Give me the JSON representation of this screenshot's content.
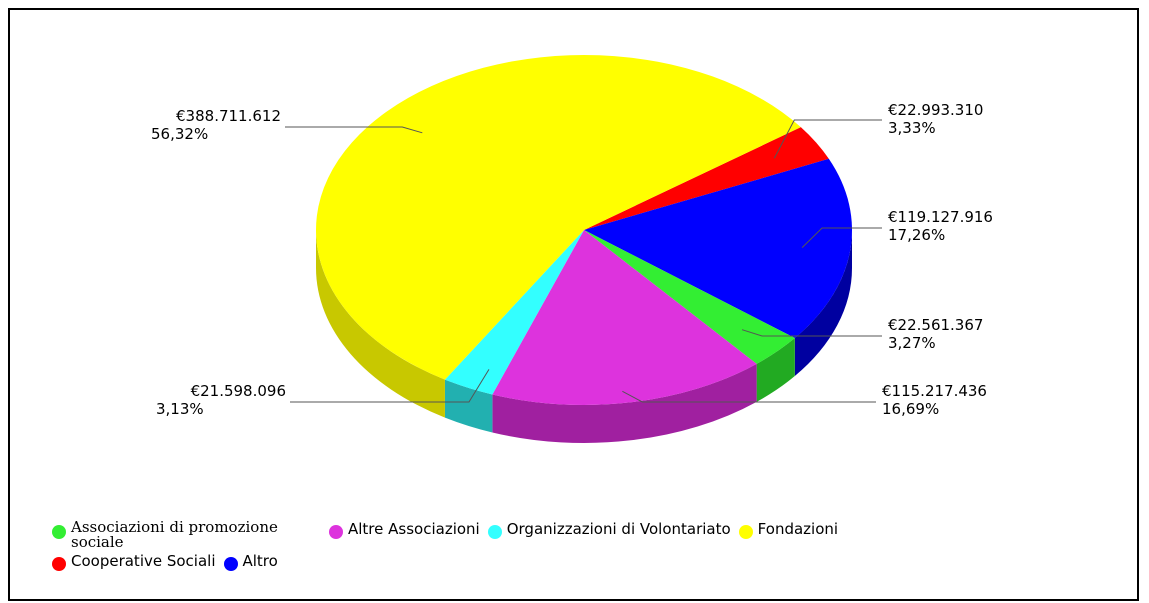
{
  "chart_data": {
    "type": "pie",
    "title": "",
    "slices": [
      {
        "label": "Cooperative Sociali",
        "value": 22993310,
        "value_text": "€22.993.310",
        "percent_text": "3,33%",
        "color": "#ff0000",
        "side_color": "#b30000"
      },
      {
        "label": "Altro",
        "value": 119127916,
        "value_text": "€119.127.916",
        "percent_text": "17,26%",
        "color": "#0000ff",
        "side_color": "#0000a0"
      },
      {
        "label": "Associazioni di promozione sociale",
        "value": 22561367,
        "value_text": "€22.561.367",
        "percent_text": "3,27%",
        "color": "#33ee33",
        "side_color": "#22aa22"
      },
      {
        "label": "Altre Associazioni",
        "value": 115217436,
        "value_text": "€115.217.436",
        "percent_text": "16,69%",
        "color": "#dd33dd",
        "side_color": "#a020a0"
      },
      {
        "label": "Organizzazioni di Volontariato",
        "value": 21598096,
        "value_text": "€21.598.096",
        "percent_text": "3,13%",
        "color": "#33ffff",
        "side_color": "#22b0b0"
      },
      {
        "label": "Fondazioni",
        "value": 388711612,
        "value_text": "€388.711.612",
        "percent_text": "56,32%",
        "color": "#ffff00",
        "side_color": "#c8c800"
      }
    ],
    "legend_position": "bottom-left"
  },
  "legend": {
    "row1": [
      {
        "label": "Associazioni di promozione sociale",
        "color": "#33ee33"
      },
      {
        "label": "Altre Associazioni",
        "color": "#dd33dd"
      },
      {
        "label": "Organizzazioni di Volontariato",
        "color": "#33ffff"
      },
      {
        "label": "Fondazioni",
        "color": "#ffff00"
      }
    ],
    "row2": [
      {
        "label": "Cooperative Sociali",
        "color": "#ff0000"
      },
      {
        "label": "Altro",
        "color": "#0000ff"
      }
    ]
  }
}
